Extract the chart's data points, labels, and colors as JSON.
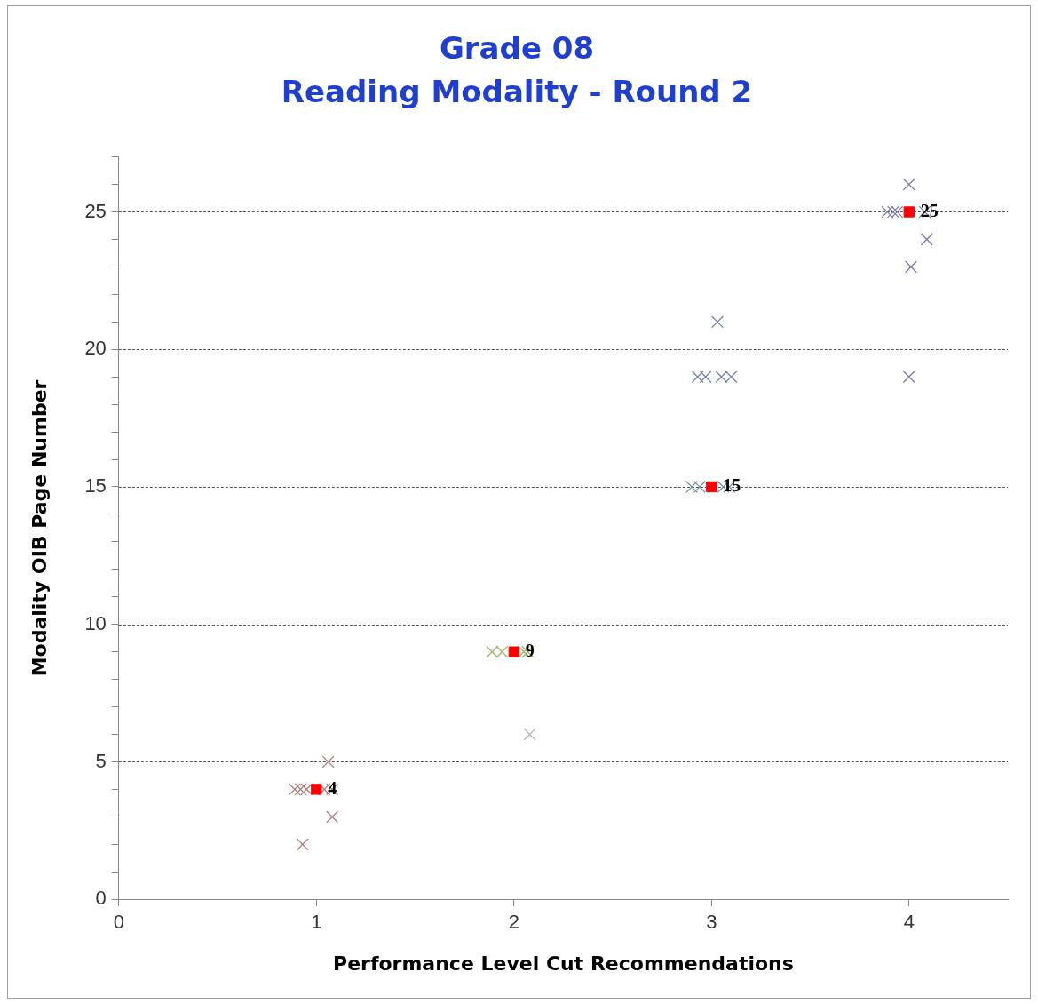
{
  "chart_data": {
    "type": "scatter",
    "title": "Grade 08",
    "subtitle": "Reading Modality - Round 2",
    "xlabel": "Performance Level Cut Recommendations",
    "ylabel": "Modality OIB Page Number",
    "xlim": [
      0,
      4.5
    ],
    "xticks": [
      0,
      1,
      2,
      3,
      4
    ],
    "ylim": [
      0,
      27
    ],
    "yticks": [
      0,
      {
        "value": 1,
        "label": null
      },
      {
        "value": 2,
        "label": null
      },
      {
        "value": 3,
        "label": null
      },
      {
        "value": 4,
        "label": null
      },
      5,
      {
        "value": 6,
        "label": null
      },
      {
        "value": 7,
        "label": null
      },
      {
        "value": 8,
        "label": null
      },
      {
        "value": 9,
        "label": null
      },
      10,
      {
        "value": 11,
        "label": null
      },
      {
        "value": 12,
        "label": null
      },
      {
        "value": 13,
        "label": null
      },
      {
        "value": 14,
        "label": null
      },
      15,
      {
        "value": 16,
        "label": null
      },
      {
        "value": 17,
        "label": null
      },
      {
        "value": 18,
        "label": null
      },
      {
        "value": 19,
        "label": null
      },
      20,
      {
        "value": 21,
        "label": null
      },
      {
        "value": 22,
        "label": null
      },
      {
        "value": 23,
        "label": null
      },
      {
        "value": 24,
        "label": null
      },
      25,
      {
        "value": 26,
        "label": null
      },
      {
        "value": 27,
        "label": null
      }
    ],
    "grid": "y",
    "legend": false,
    "marker": "cross",
    "series": [
      {
        "color": "#b08080",
        "x": [
          0.89,
          0.92,
          0.95,
          1.04,
          1.08,
          1.06,
          1.08,
          0.93
        ],
        "values": [
          4,
          4,
          4,
          4,
          4,
          5,
          3,
          2
        ]
      },
      {
        "color": "#9cb36b",
        "x": [
          1.89,
          1.94,
          2.05,
          2.07
        ],
        "values": [
          9,
          9,
          9,
          9
        ]
      },
      {
        "color": "#a8acbc",
        "x": [
          2.08
        ],
        "values": [
          6
        ]
      },
      {
        "color": "#7585a5",
        "x": [
          2.9,
          2.94,
          3.06,
          3.09,
          2.93,
          2.97,
          3.05,
          3.1,
          3.03
        ],
        "values": [
          15,
          15,
          15,
          15,
          19,
          19,
          19,
          19,
          21
        ]
      },
      {
        "color": "#7a7aa8",
        "x": [
          3.89,
          3.92,
          3.94,
          4.08,
          4.0,
          4.09,
          4.01,
          4.0
        ],
        "values": [
          25,
          25,
          25,
          25,
          26,
          24,
          23,
          19
        ]
      },
      {
        "color": "#ff0000",
        "marker": "square",
        "x": [
          1,
          2,
          3,
          4
        ],
        "values": [
          4,
          9,
          15,
          25
        ],
        "value_labels": [
          "4",
          "9",
          "15",
          "25"
        ]
      }
    ]
  }
}
